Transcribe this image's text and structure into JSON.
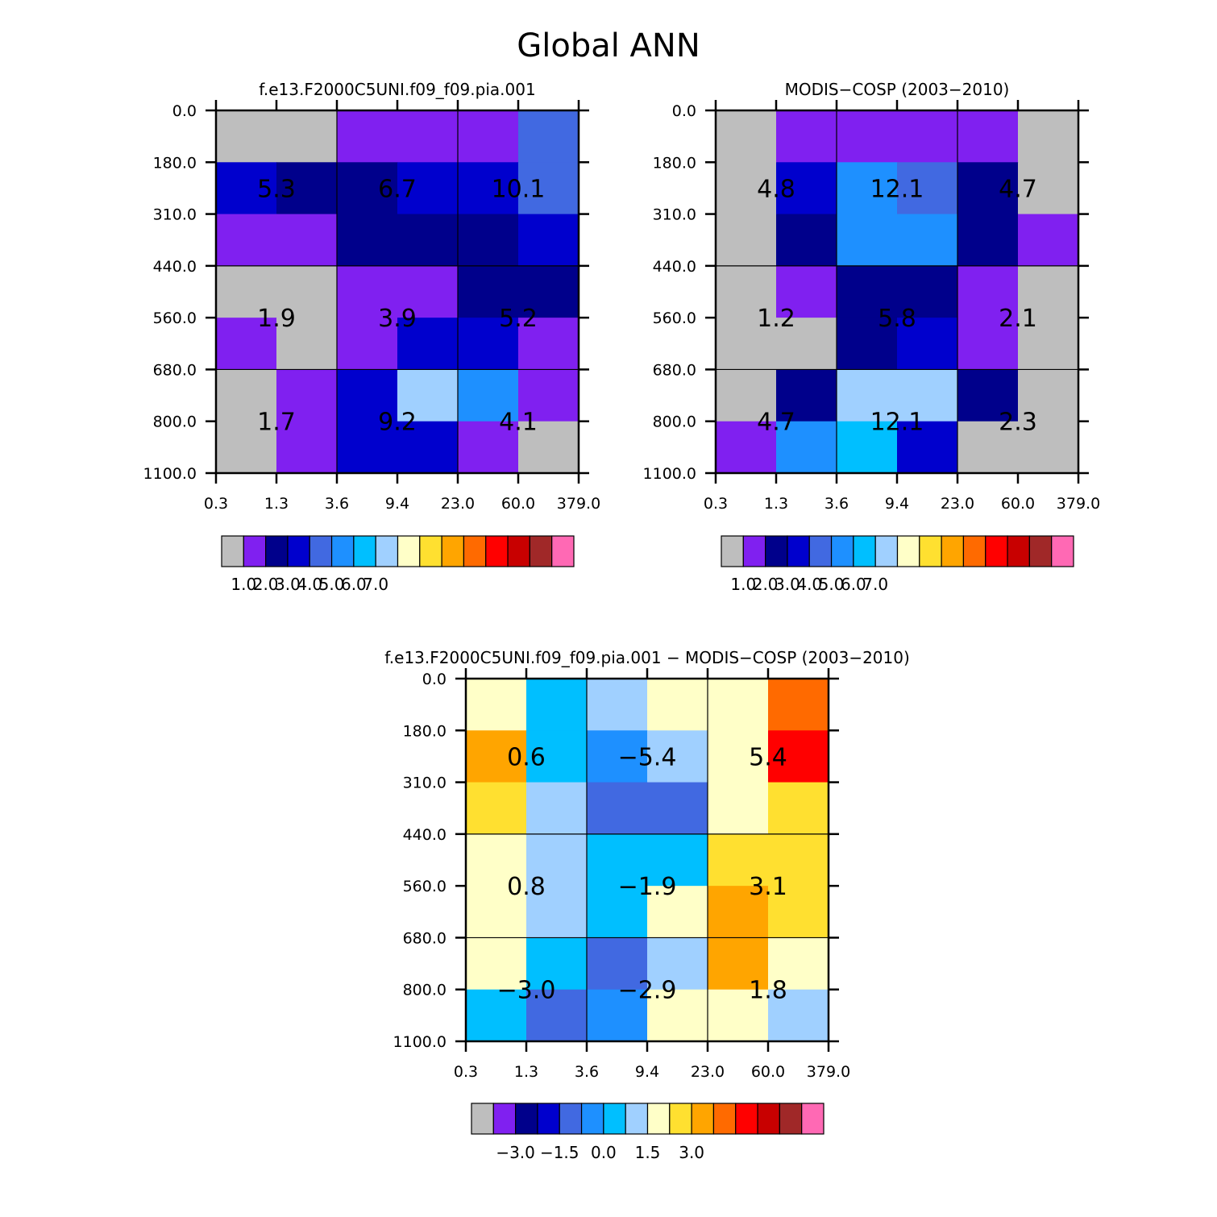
{
  "title": "Global ANN",
  "colorbar_colors": [
    "#BEBEBE",
    "#8020F0",
    "#00008B",
    "#0000CD",
    "#4169E1",
    "#1E90FF",
    "#00BFFF",
    "#A0D0FF",
    "#FFFFC8",
    "#FFE030",
    "#FFA500",
    "#FF6A00",
    "#FF0000",
    "#C80000",
    "#A02828",
    "#FF69B4"
  ],
  "chart_data": [
    {
      "type": "heatmap",
      "title": "f.e13.F2000C5UNI.f09_f09.pia.001",
      "x_ticks": [
        "0.3",
        "1.3",
        "3.6",
        "9.4",
        "23.0",
        "60.0",
        "379.0"
      ],
      "y_ticks": [
        "0.0",
        "180.0",
        "310.0",
        "440.0",
        "560.0",
        "680.0",
        "800.0",
        "1100.0"
      ],
      "cell_colors": [
        [
          0,
          0,
          1,
          1,
          1,
          4
        ],
        [
          3,
          2,
          2,
          3,
          3,
          4
        ],
        [
          1,
          1,
          2,
          2,
          2,
          3
        ],
        [
          0,
          0,
          1,
          1,
          2,
          2
        ],
        [
          1,
          0,
          1,
          3,
          3,
          1
        ],
        [
          0,
          1,
          3,
          7,
          5,
          1
        ],
        [
          0,
          1,
          3,
          3,
          1,
          0
        ]
      ],
      "block_labels": [
        [
          "5.3",
          "6.7",
          "10.1"
        ],
        [
          "1.9",
          "3.9",
          "5.2"
        ],
        [
          "1.7",
          "9.2",
          "4.1"
        ]
      ],
      "colorbar_ticks": [
        "1.0",
        "2.0",
        "3.0",
        "4.0",
        "5.0",
        "6.0",
        "7.0"
      ]
    },
    {
      "type": "heatmap",
      "title": "MODIS-COSP (2003-2010)",
      "x_ticks": [
        "0.3",
        "1.3",
        "3.6",
        "9.4",
        "23.0",
        "60.0",
        "379.0"
      ],
      "y_ticks": [
        "0.0",
        "180.0",
        "310.0",
        "440.0",
        "560.0",
        "680.0",
        "800.0",
        "1100.0"
      ],
      "cell_colors": [
        [
          0,
          1,
          1,
          1,
          1,
          0
        ],
        [
          0,
          3,
          5,
          4,
          2,
          0
        ],
        [
          0,
          2,
          5,
          5,
          2,
          1
        ],
        [
          0,
          1,
          2,
          2,
          1,
          0
        ],
        [
          0,
          0,
          2,
          3,
          1,
          0
        ],
        [
          0,
          2,
          7,
          7,
          2,
          0
        ],
        [
          1,
          5,
          6,
          3,
          0,
          0
        ]
      ],
      "block_labels": [
        [
          "4.8",
          "12.1",
          "4.7"
        ],
        [
          "1.2",
          "5.8",
          "2.1"
        ],
        [
          "4.7",
          "12.1",
          "2.3"
        ]
      ],
      "colorbar_ticks": [
        "1.0",
        "2.0",
        "3.0",
        "4.0",
        "5.0",
        "6.0",
        "7.0"
      ]
    },
    {
      "type": "heatmap",
      "title": "f.e13.F2000C5UNI.f09_f09.pia.001 - MODIS-COSP (2003-2010)",
      "x_ticks": [
        "0.3",
        "1.3",
        "3.6",
        "9.4",
        "23.0",
        "60.0",
        "379.0"
      ],
      "y_ticks": [
        "0.0",
        "180.0",
        "310.0",
        "440.0",
        "560.0",
        "680.0",
        "800.0",
        "1100.0"
      ],
      "cell_colors": [
        [
          8,
          6,
          7,
          8,
          8,
          11
        ],
        [
          10,
          6,
          5,
          7,
          8,
          12
        ],
        [
          9,
          7,
          4,
          4,
          8,
          9
        ],
        [
          8,
          7,
          6,
          6,
          9,
          9
        ],
        [
          8,
          7,
          6,
          8,
          10,
          9
        ],
        [
          8,
          6,
          4,
          7,
          10,
          8
        ],
        [
          6,
          4,
          5,
          8,
          8,
          7
        ]
      ],
      "block_labels": [
        [
          "0.6",
          "-5.4",
          "5.4"
        ],
        [
          "0.8",
          "-1.9",
          "3.1"
        ],
        [
          "-3.0",
          "-2.9",
          "1.8"
        ]
      ],
      "colorbar_ticks": [
        "-3.0",
        "-1.5",
        "0.0",
        "1.5",
        "3.0"
      ]
    }
  ]
}
